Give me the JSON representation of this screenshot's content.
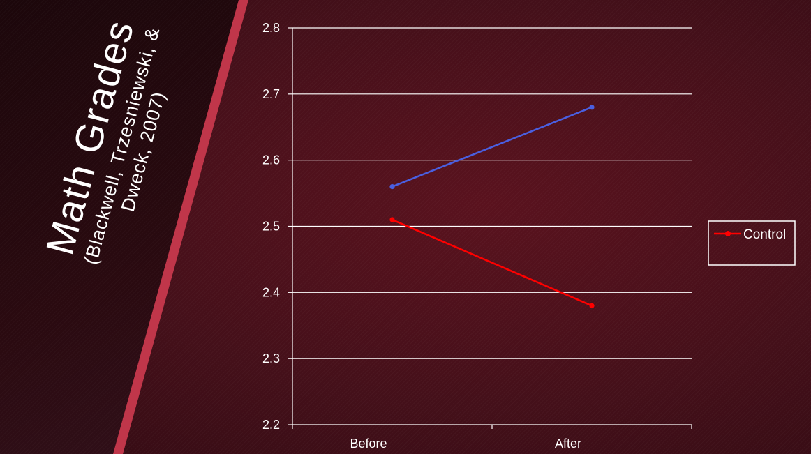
{
  "slide": {
    "title": "Math Grades",
    "subtitle_line1": "(Blackwell, Trzesniewski, &",
    "subtitle_line2": "Dweck, 2007)"
  },
  "colors": {
    "background": "#45101a",
    "accent_stripe": "#c0364a",
    "grid": "#ffffff",
    "control_series": "#ff0000",
    "other_series": "#4a5fe0"
  },
  "chart_data": {
    "type": "line",
    "x": [
      "Before",
      "After"
    ],
    "ylim": [
      2.2,
      2.8
    ],
    "yticks": [
      "2.2",
      "2.3",
      "2.4",
      "2.5",
      "2.6",
      "2.7",
      "2.8"
    ],
    "grid": true,
    "legend_position": "right",
    "series": [
      {
        "values": [
          2.56,
          2.68
        ],
        "color": "#4a5fe0",
        "in_legend": false
      },
      {
        "name": "Control",
        "values": [
          2.51,
          2.38
        ],
        "color": "#ff0000",
        "in_legend": true
      }
    ]
  }
}
